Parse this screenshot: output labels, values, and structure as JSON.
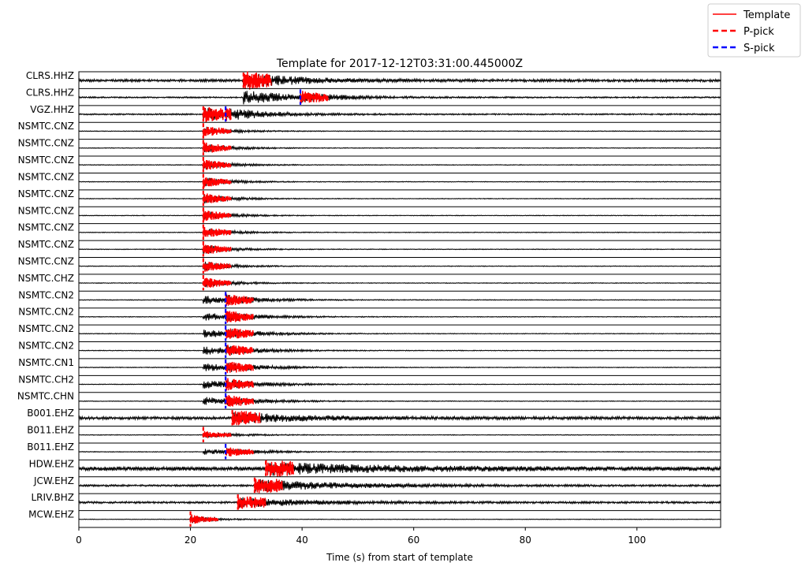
{
  "chart_data": {
    "type": "line",
    "title": "Template for 2017-12-12T03:31:00.445000Z",
    "xlabel": "Time (s) from start of template",
    "ylabel": "",
    "xlim": [
      0,
      115
    ],
    "xticks": [
      0,
      20,
      40,
      60,
      80,
      100
    ],
    "grid": false,
    "legend": {
      "placement": "top-right",
      "entries": [
        {
          "label": "Template",
          "color": "#ff0000",
          "style": "solid"
        },
        {
          "label": "P-pick",
          "color": "#ff0000",
          "style": "dashed"
        },
        {
          "label": "S-pick",
          "color": "#0000ff",
          "style": "dashed"
        }
      ]
    },
    "colors": {
      "waveform": "#000000",
      "template": "#ff0000",
      "p_pick": "#ff0000",
      "s_pick": "#0000ff"
    },
    "traces": [
      {
        "label": "CLRS.HHZ",
        "p_pick": 29.5,
        "s_pick": null,
        "template_start": 29.5,
        "template_end": 34.5,
        "noise": 0.22,
        "event_start": 29.5,
        "event_amp": 1.2,
        "event_decay": 10
      },
      {
        "label": "CLRS.HHZ",
        "p_pick": null,
        "s_pick": 39.7,
        "template_start": 39.7,
        "template_end": 44.7,
        "noise": 0.12,
        "event_start": 29.5,
        "event_amp": 1.1,
        "event_decay": 10
      },
      {
        "label": "VGZ.HHZ",
        "p_pick": 22.3,
        "s_pick": 26.3,
        "template_start": 22.3,
        "template_end": 27.3,
        "noise": 0.12,
        "event_start": 22.3,
        "event_amp": 1.1,
        "event_decay": 8
      },
      {
        "label": "NSMTC.CNZ",
        "p_pick": 22.3,
        "s_pick": null,
        "template_start": 22.3,
        "template_end": 27.3,
        "noise": 0.06,
        "event_start": 22.3,
        "event_amp": 0.8,
        "event_decay": 5
      },
      {
        "label": "NSMTC.CNZ",
        "p_pick": 22.3,
        "s_pick": null,
        "template_start": 22.3,
        "template_end": 27.3,
        "noise": 0.06,
        "event_start": 22.3,
        "event_amp": 0.8,
        "event_decay": 5
      },
      {
        "label": "NSMTC.CNZ",
        "p_pick": 22.3,
        "s_pick": null,
        "template_start": 22.3,
        "template_end": 27.3,
        "noise": 0.06,
        "event_start": 22.3,
        "event_amp": 0.8,
        "event_decay": 5
      },
      {
        "label": "NSMTC.CNZ",
        "p_pick": 22.3,
        "s_pick": null,
        "template_start": 22.3,
        "template_end": 27.3,
        "noise": 0.06,
        "event_start": 22.3,
        "event_amp": 0.8,
        "event_decay": 5
      },
      {
        "label": "NSMTC.CNZ",
        "p_pick": 22.3,
        "s_pick": null,
        "template_start": 22.3,
        "template_end": 27.3,
        "noise": 0.06,
        "event_start": 22.3,
        "event_amp": 0.8,
        "event_decay": 5
      },
      {
        "label": "NSMTC.CNZ",
        "p_pick": 22.3,
        "s_pick": null,
        "template_start": 22.3,
        "template_end": 27.3,
        "noise": 0.06,
        "event_start": 22.3,
        "event_amp": 0.8,
        "event_decay": 5
      },
      {
        "label": "NSMTC.CNZ",
        "p_pick": 22.3,
        "s_pick": null,
        "template_start": 22.3,
        "template_end": 27.3,
        "noise": 0.06,
        "event_start": 22.3,
        "event_amp": 0.8,
        "event_decay": 5
      },
      {
        "label": "NSMTC.CNZ",
        "p_pick": 22.3,
        "s_pick": null,
        "template_start": 22.3,
        "template_end": 27.3,
        "noise": 0.06,
        "event_start": 22.3,
        "event_amp": 0.8,
        "event_decay": 5
      },
      {
        "label": "NSMTC.CNZ",
        "p_pick": 22.3,
        "s_pick": null,
        "template_start": 22.3,
        "template_end": 27.3,
        "noise": 0.06,
        "event_start": 22.3,
        "event_amp": 0.8,
        "event_decay": 5
      },
      {
        "label": "NSMTC.CHZ",
        "p_pick": 22.3,
        "s_pick": null,
        "template_start": 22.3,
        "template_end": 27.3,
        "noise": 0.06,
        "event_start": 22.3,
        "event_amp": 0.8,
        "event_decay": 5
      },
      {
        "label": "NSMTC.CN2",
        "p_pick": null,
        "s_pick": 26.3,
        "template_start": 26.3,
        "template_end": 31.3,
        "noise": 0.06,
        "event_start": 22.3,
        "event_amp": 0.7,
        "event_decay": 8
      },
      {
        "label": "NSMTC.CN2",
        "p_pick": null,
        "s_pick": 26.3,
        "template_start": 26.3,
        "template_end": 31.3,
        "noise": 0.06,
        "event_start": 22.3,
        "event_amp": 0.7,
        "event_decay": 8
      },
      {
        "label": "NSMTC.CN2",
        "p_pick": null,
        "s_pick": 26.3,
        "template_start": 26.3,
        "template_end": 31.3,
        "noise": 0.06,
        "event_start": 22.3,
        "event_amp": 0.7,
        "event_decay": 8
      },
      {
        "label": "NSMTC.CN2",
        "p_pick": null,
        "s_pick": 26.3,
        "template_start": 26.3,
        "template_end": 31.3,
        "noise": 0.06,
        "event_start": 22.3,
        "event_amp": 0.7,
        "event_decay": 8
      },
      {
        "label": "NSMTC.CN1",
        "p_pick": null,
        "s_pick": 26.3,
        "template_start": 26.3,
        "template_end": 31.3,
        "noise": 0.06,
        "event_start": 22.3,
        "event_amp": 0.7,
        "event_decay": 8
      },
      {
        "label": "NSMTC.CH2",
        "p_pick": null,
        "s_pick": 26.3,
        "template_start": 26.3,
        "template_end": 31.3,
        "noise": 0.06,
        "event_start": 22.3,
        "event_amp": 0.7,
        "event_decay": 8
      },
      {
        "label": "NSMTC.CHN",
        "p_pick": null,
        "s_pick": 26.3,
        "template_start": 26.3,
        "template_end": 31.3,
        "noise": 0.06,
        "event_start": 22.3,
        "event_amp": 0.7,
        "event_decay": 8
      },
      {
        "label": "B001.EHZ",
        "p_pick": 27.5,
        "s_pick": null,
        "template_start": 27.5,
        "template_end": 32.5,
        "noise": 0.25,
        "event_start": 27.5,
        "event_amp": 0.9,
        "event_decay": 12
      },
      {
        "label": "B011.EHZ",
        "p_pick": 22.3,
        "s_pick": null,
        "template_start": 22.3,
        "template_end": 27.3,
        "noise": 0.06,
        "event_start": 22.3,
        "event_amp": 0.5,
        "event_decay": 6
      },
      {
        "label": "B011.EHZ",
        "p_pick": null,
        "s_pick": 26.3,
        "template_start": 26.3,
        "template_end": 31.3,
        "noise": 0.06,
        "event_start": 22.3,
        "event_amp": 0.5,
        "event_decay": 6
      },
      {
        "label": "HDW.EHZ",
        "p_pick": 33.5,
        "s_pick": null,
        "template_start": 33.5,
        "template_end": 38.5,
        "noise": 0.35,
        "event_start": 33.5,
        "event_amp": 0.9,
        "event_decay": 20
      },
      {
        "label": "JCW.EHZ",
        "p_pick": 31.5,
        "s_pick": null,
        "template_start": 31.5,
        "template_end": 36.5,
        "noise": 0.16,
        "event_start": 31.5,
        "event_amp": 1.0,
        "event_decay": 16
      },
      {
        "label": "LRIV.BHZ",
        "p_pick": 28.5,
        "s_pick": null,
        "template_start": 28.5,
        "template_end": 33.5,
        "noise": 0.18,
        "event_start": 28.5,
        "event_amp": 0.8,
        "event_decay": 12
      },
      {
        "label": "MCW.EHZ",
        "p_pick": 20.0,
        "s_pick": null,
        "template_start": 20.0,
        "template_end": 25.0,
        "noise": 0.05,
        "event_start": 20.0,
        "event_amp": 0.7,
        "event_decay": 4
      }
    ]
  }
}
